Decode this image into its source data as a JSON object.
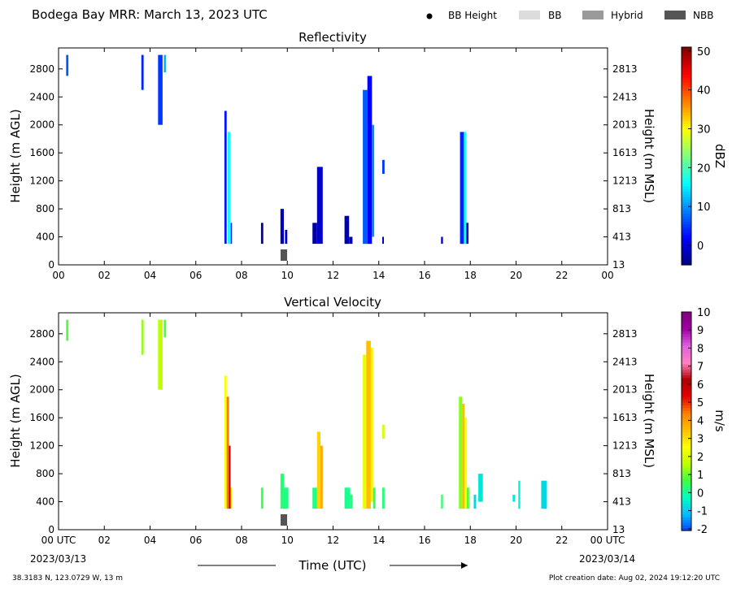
{
  "header": {
    "title": "Bodega Bay MRR:  March 13, 2023 UTC",
    "legend": [
      {
        "label": "BB Height",
        "symbol": "dot",
        "color": "#000000"
      },
      {
        "label": "BB",
        "symbol": "box",
        "color": "#dcdcdc"
      },
      {
        "label": "Hybrid",
        "symbol": "box",
        "color": "#9a9a9a"
      },
      {
        "label": "NBB",
        "symbol": "box",
        "color": "#555555"
      }
    ]
  },
  "footer": {
    "location": "38.3183 N, 123.0729 W, 13 m",
    "created": "Plot creation date: Aug 02, 2024 19:12:20 UTC",
    "start_date": "2023/03/13",
    "end_date": "2023/03/14",
    "xlabel": "Time (UTC)"
  },
  "chart_data": [
    {
      "type": "heatmap",
      "title": "Reflectivity",
      "ylabel": "Height (m AGL)",
      "ylabel_right": "Height (m MSL)",
      "colorbar_label": "dBZ",
      "x_ticks": [
        "00",
        "02",
        "04",
        "06",
        "08",
        "10",
        "12",
        "14",
        "16",
        "18",
        "20",
        "22",
        "00"
      ],
      "y_ticks": [
        0,
        400,
        800,
        1200,
        1600,
        2000,
        2400,
        2800
      ],
      "y_ticks_right": [
        13,
        413,
        813,
        1213,
        1613,
        2013,
        2413,
        2813
      ],
      "xlim": [
        0,
        24
      ],
      "ylim": [
        0,
        3100
      ],
      "colorbar_ticks": [
        0,
        10,
        20,
        30,
        40,
        50
      ],
      "colorbar_range": [
        -5,
        51
      ],
      "colorbar_colors": [
        "#00007f",
        "#0000ff",
        "#007fff",
        "#00ffff",
        "#7fff7f",
        "#ffff00",
        "#ff7f00",
        "#ff0000",
        "#7f0000"
      ],
      "bands": [
        {
          "start": 0.33,
          "end": 0.43,
          "h0": 2700,
          "h1": 3000,
          "value": 7
        },
        {
          "start": 3.62,
          "end": 3.72,
          "h0": 2500,
          "h1": 3000,
          "value": 4
        },
        {
          "start": 4.35,
          "end": 4.55,
          "h0": 2000,
          "h1": 3000,
          "value": 5
        },
        {
          "start": 4.6,
          "end": 4.7,
          "h0": 2750,
          "h1": 3000,
          "value": 12
        },
        {
          "start": 7.25,
          "end": 7.35,
          "h0": 300,
          "h1": 2200,
          "value": 3
        },
        {
          "start": 7.4,
          "end": 7.5,
          "h0": 300,
          "h1": 1900,
          "value": 16
        },
        {
          "start": 7.52,
          "end": 7.58,
          "h0": 300,
          "h1": 600,
          "value": 4
        },
        {
          "start": 8.85,
          "end": 8.95,
          "h0": 300,
          "h1": 600,
          "value": -3
        },
        {
          "start": 9.7,
          "end": 9.85,
          "h0": 300,
          "h1": 800,
          "value": -2
        },
        {
          "start": 9.9,
          "end": 10.0,
          "h0": 300,
          "h1": 500,
          "value": -1
        },
        {
          "start": 11.1,
          "end": 11.3,
          "h0": 300,
          "h1": 600,
          "value": -3
        },
        {
          "start": 11.3,
          "end": 11.55,
          "h0": 300,
          "h1": 1400,
          "value": -1
        },
        {
          "start": 12.5,
          "end": 12.7,
          "h0": 300,
          "h1": 700,
          "value": -3
        },
        {
          "start": 12.7,
          "end": 12.85,
          "h0": 300,
          "h1": 400,
          "value": -2
        },
        {
          "start": 13.3,
          "end": 13.5,
          "h0": 300,
          "h1": 2500,
          "value": 7
        },
        {
          "start": 13.5,
          "end": 13.7,
          "h0": 300,
          "h1": 2700,
          "value": 2
        },
        {
          "start": 13.7,
          "end": 13.8,
          "h0": 400,
          "h1": 2000,
          "value": 10
        },
        {
          "start": 14.15,
          "end": 14.25,
          "h0": 1300,
          "h1": 1500,
          "value": 5
        },
        {
          "start": 14.15,
          "end": 14.22,
          "h0": 300,
          "h1": 400,
          "value": -2
        },
        {
          "start": 16.72,
          "end": 16.8,
          "h0": 300,
          "h1": 400,
          "value": -1
        },
        {
          "start": 17.55,
          "end": 17.72,
          "h0": 300,
          "h1": 1900,
          "value": 4
        },
        {
          "start": 17.72,
          "end": 17.82,
          "h0": 300,
          "h1": 1900,
          "value": 17
        },
        {
          "start": 17.82,
          "end": 17.92,
          "h0": 300,
          "h1": 600,
          "value": 0
        }
      ],
      "bb_marks": [
        {
          "time": 9.85,
          "type": "NBB"
        }
      ]
    },
    {
      "type": "heatmap",
      "title": "Vertical Velocity",
      "ylabel": "Height (m AGL)",
      "ylabel_right": "Height (m MSL)",
      "colorbar_label": "m/s",
      "x_ticks": [
        "00 UTC",
        "02",
        "04",
        "06",
        "08",
        "10",
        "12",
        "14",
        "16",
        "18",
        "20",
        "22",
        "00 UTC"
      ],
      "y_ticks": [
        0,
        400,
        800,
        1200,
        1600,
        2000,
        2400,
        2800
      ],
      "y_ticks_right": [
        13,
        413,
        813,
        1213,
        1613,
        2013,
        2413,
        2813
      ],
      "xlim": [
        0,
        24
      ],
      "ylim": [
        0,
        3100
      ],
      "colorbar_ticks": [
        10,
        9,
        8,
        7,
        6,
        5,
        4,
        3,
        2,
        1,
        0,
        -1,
        -2
      ],
      "colorbar_range": [
        -2.1,
        10
      ],
      "colorbar_colors": [
        "#0040ff",
        "#00bfff",
        "#00ffbf",
        "#40ff40",
        "#bfff00",
        "#ffff00",
        "#ffbf00",
        "#ff8000",
        "#e00000",
        "#b00000",
        "#ff80c0",
        "#e060e0",
        "#a000a0",
        "#800080"
      ],
      "bands": [
        {
          "start": 0.33,
          "end": 0.43,
          "h0": 2700,
          "h1": 3000,
          "value": 0.8
        },
        {
          "start": 3.62,
          "end": 3.72,
          "h0": 2500,
          "h1": 3000,
          "value": 1.3
        },
        {
          "start": 4.35,
          "end": 4.55,
          "h0": 2000,
          "h1": 3000,
          "value": 1.6
        },
        {
          "start": 4.6,
          "end": 4.7,
          "h0": 2750,
          "h1": 3000,
          "value": 0.8
        },
        {
          "start": 7.25,
          "end": 7.35,
          "h0": 300,
          "h1": 2200,
          "value": 2.5
        },
        {
          "start": 7.35,
          "end": 7.45,
          "h0": 300,
          "h1": 1900,
          "value": 4.5
        },
        {
          "start": 7.45,
          "end": 7.52,
          "h0": 300,
          "h1": 1200,
          "value": 6
        },
        {
          "start": 7.52,
          "end": 7.58,
          "h0": 300,
          "h1": 600,
          "value": 3
        },
        {
          "start": 8.85,
          "end": 8.95,
          "h0": 300,
          "h1": 600,
          "value": 0.6
        },
        {
          "start": 9.7,
          "end": 9.85,
          "h0": 300,
          "h1": 800,
          "value": 0.3
        },
        {
          "start": 9.85,
          "end": 10.05,
          "h0": 300,
          "h1": 600,
          "value": 0.2
        },
        {
          "start": 11.1,
          "end": 11.3,
          "h0": 300,
          "h1": 600,
          "value": 0.2
        },
        {
          "start": 11.3,
          "end": 11.45,
          "h0": 300,
          "h1": 1400,
          "value": 3.2
        },
        {
          "start": 11.45,
          "end": 11.55,
          "h0": 300,
          "h1": 1200,
          "value": 3.8
        },
        {
          "start": 12.5,
          "end": 12.75,
          "h0": 300,
          "h1": 600,
          "value": 0.1
        },
        {
          "start": 12.75,
          "end": 12.85,
          "h0": 300,
          "h1": 500,
          "value": 0.3
        },
        {
          "start": 13.3,
          "end": 13.45,
          "h0": 300,
          "h1": 2500,
          "value": 2.2
        },
        {
          "start": 13.45,
          "end": 13.65,
          "h0": 300,
          "h1": 2700,
          "value": 3.5
        },
        {
          "start": 13.65,
          "end": 13.75,
          "h0": 400,
          "h1": 2600,
          "value": 2.8
        },
        {
          "start": 13.75,
          "end": 13.85,
          "h0": 300,
          "h1": 600,
          "value": 0.5
        },
        {
          "start": 14.15,
          "end": 14.25,
          "h0": 1300,
          "h1": 1500,
          "value": 2
        },
        {
          "start": 14.15,
          "end": 14.25,
          "h0": 300,
          "h1": 600,
          "value": 0.3
        },
        {
          "start": 16.72,
          "end": 16.8,
          "h0": 300,
          "h1": 500,
          "value": 0.4
        },
        {
          "start": 17.5,
          "end": 17.65,
          "h0": 300,
          "h1": 1900,
          "value": 1.2
        },
        {
          "start": 17.65,
          "end": 17.75,
          "h0": 300,
          "h1": 1800,
          "value": 3.5
        },
        {
          "start": 17.75,
          "end": 17.85,
          "h0": 300,
          "h1": 1600,
          "value": 2.5
        },
        {
          "start": 17.85,
          "end": 17.95,
          "h0": 300,
          "h1": 600,
          "value": 0.8
        },
        {
          "start": 18.15,
          "end": 18.25,
          "h0": 300,
          "h1": 500,
          "value": -0.8
        },
        {
          "start": 18.35,
          "end": 18.55,
          "h0": 400,
          "h1": 800,
          "value": -0.6
        },
        {
          "start": 19.85,
          "end": 19.95,
          "h0": 400,
          "h1": 500,
          "value": -0.5
        },
        {
          "start": 20.1,
          "end": 20.18,
          "h0": 300,
          "h1": 700,
          "value": -0.5
        },
        {
          "start": 21.1,
          "end": 21.35,
          "h0": 300,
          "h1": 700,
          "value": -0.8
        }
      ],
      "bb_marks": [
        {
          "time": 9.85,
          "type": "NBB"
        }
      ]
    }
  ]
}
